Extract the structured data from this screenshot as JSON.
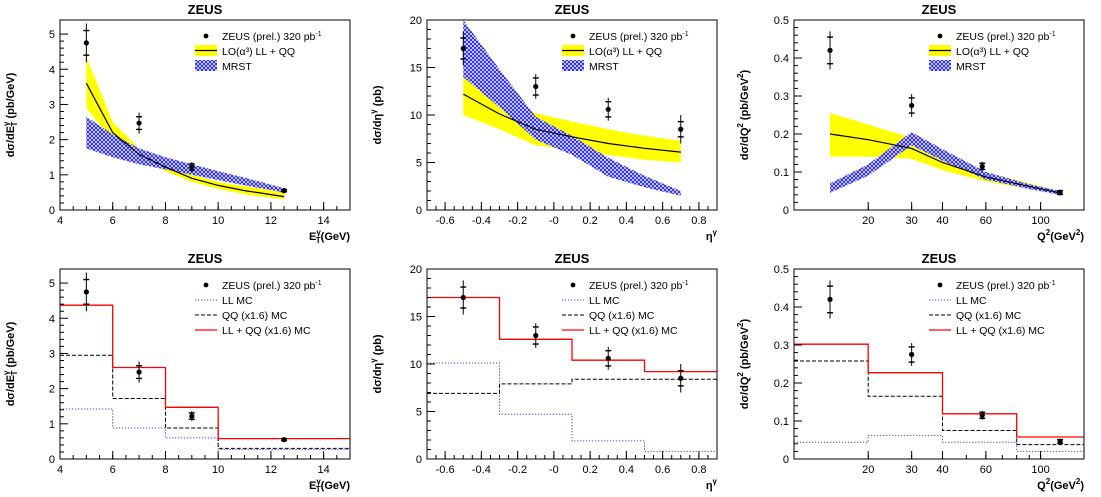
{
  "colors": {
    "band_yellow": "#ffff00",
    "band_blue": "#2a2aee",
    "line_black": "#000000",
    "ll_mc": "#3b3bdd",
    "qq_mc": "#000000",
    "sum_mc": "#ff0000"
  },
  "chart_data": [
    {
      "type": "line",
      "panel": "top-left",
      "title": "ZEUS",
      "ylabel_base": "dσ/dE",
      "ylabel_sub": "T",
      "ylabel_sup": "γ",
      "ylabel_tail": " (pb/GeV)",
      "xlabel_base": "E",
      "xlabel_sub": "T",
      "xlabel_sup": "γ",
      "xlabel_tail": "(GeV)",
      "xlim": [
        4,
        15
      ],
      "ylim": [
        0,
        5.4
      ],
      "xticks": [
        4,
        6,
        8,
        10,
        12,
        14
      ],
      "yticks": [
        0,
        1,
        2,
        3,
        4,
        5
      ],
      "legend_position": "top-right",
      "legend": [
        {
          "label": "ZEUS (prel.) 320 pb",
          "sup": "-1",
          "style": "point"
        },
        {
          "label": "LO(α³) LL + QQ",
          "style": "yellow-band"
        },
        {
          "label": "MRST",
          "style": "blue-band"
        }
      ],
      "data": {
        "x": [
          5,
          7,
          9,
          12.5
        ],
        "y": [
          4.75,
          2.47,
          1.22,
          0.55
        ],
        "err_stat": [
          0.35,
          0.18,
          0.09,
          0.03
        ],
        "err_tot": [
          0.55,
          0.3,
          0.14,
          0.05
        ]
      },
      "yellow_band": {
        "x": [
          5,
          6,
          7,
          8,
          9,
          10,
          11,
          12.5
        ],
        "lo": [
          2.9,
          1.95,
          1.45,
          1.1,
          0.8,
          0.6,
          0.45,
          0.3
        ],
        "hi": [
          4.35,
          2.5,
          1.75,
          1.35,
          1.0,
          0.8,
          0.68,
          0.5
        ],
        "central": [
          3.6,
          2.2,
          1.58,
          1.22,
          0.9,
          0.7,
          0.55,
          0.38
        ]
      },
      "blue_band": {
        "x": [
          5,
          6,
          7,
          8,
          9,
          10,
          11,
          12.5
        ],
        "lo": [
          1.75,
          1.5,
          1.3,
          1.15,
          1.0,
          0.85,
          0.7,
          0.5
        ],
        "hi": [
          2.65,
          2.15,
          1.75,
          1.5,
          1.3,
          1.1,
          0.92,
          0.62
        ]
      }
    },
    {
      "type": "line",
      "panel": "top-middle",
      "title": "ZEUS",
      "ylabel_base": "dσ/dη",
      "ylabel_sub": "",
      "ylabel_sup": "γ",
      "ylabel_tail": " (pb)",
      "xlabel_base": "η",
      "xlabel_sub": "",
      "xlabel_sup": "γ",
      "xlabel_tail": "",
      "xlim": [
        -0.7,
        0.9
      ],
      "ylim": [
        0,
        20
      ],
      "xticks": [
        -0.6,
        -0.4,
        -0.2,
        0,
        0.2,
        0.4,
        0.6,
        0.8
      ],
      "xtick_labels": [
        "-0.6",
        "-0.4",
        "-0.2",
        "-0",
        "0.2",
        "0.4",
        "0.6",
        "0.8"
      ],
      "yticks": [
        0,
        5,
        10,
        15,
        20
      ],
      "legend_position": "top-right",
      "legend": [
        {
          "label": "ZEUS (prel.) 320 pb",
          "sup": "-1",
          "style": "point"
        },
        {
          "label": "LO(α³) LL + QQ",
          "style": "yellow-band"
        },
        {
          "label": "MRST",
          "style": "blue-band"
        }
      ],
      "data": {
        "x": [
          -0.5,
          -0.1,
          0.3,
          0.7
        ],
        "y": [
          17.0,
          13.0,
          10.6,
          8.5
        ],
        "err_stat": [
          1.1,
          0.9,
          0.8,
          0.8
        ],
        "err_tot": [
          1.8,
          1.3,
          1.2,
          1.5
        ]
      },
      "yellow_band": {
        "x": [
          -0.5,
          -0.3,
          -0.1,
          0.1,
          0.3,
          0.5,
          0.7
        ],
        "lo": [
          10.0,
          8.5,
          6.8,
          6.3,
          5.8,
          5.3,
          5.0
        ],
        "hi": [
          14.0,
          11.5,
          10.2,
          9.3,
          8.5,
          7.8,
          7.3
        ],
        "central": [
          12.2,
          10.1,
          8.5,
          7.7,
          7.0,
          6.5,
          6.1
        ]
      },
      "blue_band": {
        "x": [
          -0.5,
          -0.3,
          -0.1,
          0.1,
          0.3,
          0.5,
          0.7
        ],
        "lo": [
          14.0,
          10.8,
          7.4,
          5.8,
          3.5,
          2.4,
          1.5
        ],
        "hi": [
          20.0,
          14.8,
          9.8,
          7.8,
          5.5,
          3.6,
          2.0
        ]
      }
    },
    {
      "type": "line",
      "panel": "top-right",
      "title": "ZEUS",
      "ylabel_base": "dσ/dQ",
      "ylabel_sub": "",
      "ylabel_sup": "2",
      "ylabel_tail": " (pb/GeV",
      "ylabel_tail_sup": "2",
      "ylabel_close": ")",
      "xlabel_base": "Q",
      "xlabel_sub": "",
      "xlabel_sup": "2",
      "xlabel_tail": "(GeV",
      "xlabel_tail_sup": "2",
      "xlabel_close": ")",
      "xscale": "log",
      "xlim": [
        10,
        150
      ],
      "ylim": [
        0,
        0.5
      ],
      "xticks": [
        20,
        30,
        40,
        60,
        100
      ],
      "yticks": [
        0,
        0.1,
        0.2,
        0.3,
        0.4,
        0.5
      ],
      "legend_position": "top-right",
      "legend": [
        {
          "label": "ZEUS (prel.) 320 pb",
          "sup": "-1",
          "style": "point"
        },
        {
          "label": "LO(α³) LL + QQ",
          "style": "yellow-band"
        },
        {
          "label": "MRST",
          "style": "blue-band"
        }
      ],
      "data": {
        "x": [
          14,
          30,
          58,
          120
        ],
        "y": [
          0.42,
          0.275,
          0.115,
          0.046
        ],
        "err_stat": [
          0.035,
          0.02,
          0.008,
          0.005
        ],
        "err_tot": [
          0.05,
          0.03,
          0.012,
          0.008
        ]
      },
      "yellow_band": {
        "x": [
          14,
          20,
          30,
          40,
          60,
          90,
          120
        ],
        "lo": [
          0.14,
          0.14,
          0.135,
          0.105,
          0.075,
          0.055,
          0.04
        ],
        "hi": [
          0.255,
          0.225,
          0.19,
          0.14,
          0.1,
          0.07,
          0.05
        ],
        "central": [
          0.2,
          0.185,
          0.162,
          0.125,
          0.087,
          0.062,
          0.045
        ]
      },
      "blue_band": {
        "x": [
          14,
          20,
          30,
          40,
          60,
          90,
          120
        ],
        "lo": [
          0.045,
          0.09,
          0.17,
          0.13,
          0.08,
          0.055,
          0.04
        ],
        "hi": [
          0.07,
          0.12,
          0.205,
          0.16,
          0.1,
          0.068,
          0.05
        ]
      }
    },
    {
      "type": "line",
      "panel": "bottom-left",
      "title": "ZEUS",
      "ylabel_base": "dσ/dE",
      "ylabel_sub": "T",
      "ylabel_sup": "γ",
      "ylabel_tail": " (pb/GeV)",
      "xlabel_base": "E",
      "xlabel_sub": "T",
      "xlabel_sup": "γ",
      "xlabel_tail": "(GeV)",
      "xlim": [
        4,
        15
      ],
      "ylim": [
        0,
        5.4
      ],
      "xticks": [
        4,
        6,
        8,
        10,
        12,
        14
      ],
      "yticks": [
        0,
        1,
        2,
        3,
        4,
        5
      ],
      "legend_position": "top-right",
      "legend": [
        {
          "label": "ZEUS (prel.) 320 pb",
          "sup": "-1",
          "style": "point"
        },
        {
          "label": "LL MC",
          "style": "dotted-blue"
        },
        {
          "label": "QQ (x1.6) MC",
          "style": "dashed-black"
        },
        {
          "label": "LL + QQ (x1.6) MC",
          "style": "solid-red"
        }
      ],
      "data": {
        "x": [
          5,
          7,
          9,
          12.5
        ],
        "y": [
          4.75,
          2.47,
          1.22,
          0.55
        ],
        "err_stat": [
          0.35,
          0.18,
          0.09,
          0.03
        ],
        "err_tot": [
          0.55,
          0.3,
          0.14,
          0.05
        ]
      },
      "histograms": {
        "edges": [
          4,
          6,
          8,
          10,
          15
        ],
        "ll": [
          1.42,
          0.88,
          0.6,
          0.27
        ],
        "qq": [
          2.95,
          1.72,
          0.88,
          0.3
        ],
        "sum": [
          4.37,
          2.6,
          1.47,
          0.58
        ]
      }
    },
    {
      "type": "line",
      "panel": "bottom-middle",
      "title": "ZEUS",
      "ylabel_base": "dσ/dη",
      "ylabel_sub": "",
      "ylabel_sup": "γ",
      "ylabel_tail": " (pb)",
      "xlabel_base": "η",
      "xlabel_sub": "",
      "xlabel_sup": "γ",
      "xlabel_tail": "",
      "xlim": [
        -0.7,
        0.9
      ],
      "ylim": [
        0,
        20
      ],
      "xticks": [
        -0.6,
        -0.4,
        -0.2,
        0,
        0.2,
        0.4,
        0.6,
        0.8
      ],
      "xtick_labels": [
        "-0.6",
        "-0.4",
        "-0.2",
        "-0",
        "0.2",
        "0.4",
        "0.6",
        "0.8"
      ],
      "yticks": [
        0,
        5,
        10,
        15,
        20
      ],
      "legend_position": "top-right",
      "legend": [
        {
          "label": "ZEUS (prel.) 320 pb",
          "sup": "-1",
          "style": "point"
        },
        {
          "label": "LL MC",
          "style": "dotted-blue"
        },
        {
          "label": "QQ (x1.6) MC",
          "style": "dashed-black"
        },
        {
          "label": "LL + QQ (x1.6) MC",
          "style": "solid-red"
        }
      ],
      "data": {
        "x": [
          -0.5,
          -0.1,
          0.3,
          0.7
        ],
        "y": [
          17.0,
          13.0,
          10.6,
          8.5
        ],
        "err_stat": [
          1.1,
          0.9,
          0.8,
          0.8
        ],
        "err_tot": [
          1.8,
          1.3,
          1.2,
          1.5
        ]
      },
      "histograms": {
        "edges": [
          -0.7,
          -0.3,
          0.1,
          0.5,
          0.9
        ],
        "ll": [
          10.1,
          4.7,
          1.9,
          0.8
        ],
        "qq": [
          6.9,
          7.9,
          8.4,
          8.4
        ],
        "sum": [
          17.0,
          12.6,
          10.4,
          9.2
        ]
      }
    },
    {
      "type": "line",
      "panel": "bottom-right",
      "title": "ZEUS",
      "ylabel_base": "dσ/dQ",
      "ylabel_sub": "",
      "ylabel_sup": "2",
      "ylabel_tail": " (pb/GeV",
      "ylabel_tail_sup": "2",
      "ylabel_close": ")",
      "xlabel_base": "Q",
      "xlabel_sub": "",
      "xlabel_sup": "2",
      "xlabel_tail": "(GeV",
      "xlabel_tail_sup": "2",
      "xlabel_close": ")",
      "xscale": "log",
      "xlim": [
        10,
        150
      ],
      "ylim": [
        0,
        0.5
      ],
      "xticks": [
        20,
        30,
        40,
        60,
        100
      ],
      "yticks": [
        0,
        0.1,
        0.2,
        0.3,
        0.4,
        0.5
      ],
      "legend_position": "top-right",
      "legend": [
        {
          "label": "ZEUS (prel.) 320 pb",
          "sup": "-1",
          "style": "point"
        },
        {
          "label": "LL MC",
          "style": "dotted-blue"
        },
        {
          "label": "QQ (x1.6) MC",
          "style": "dashed-black"
        },
        {
          "label": "LL + QQ (x1.6) MC",
          "style": "solid-red"
        }
      ],
      "data": {
        "x": [
          14,
          30,
          58,
          120
        ],
        "y": [
          0.42,
          0.275,
          0.115,
          0.046
        ],
        "err_stat": [
          0.035,
          0.02,
          0.008,
          0.005
        ],
        "err_tot": [
          0.05,
          0.03,
          0.012,
          0.008
        ]
      },
      "histograms": {
        "edges": [
          10,
          20,
          40,
          80,
          150
        ],
        "ll": [
          0.044,
          0.062,
          0.044,
          0.02
        ],
        "qq": [
          0.258,
          0.165,
          0.075,
          0.038
        ],
        "sum": [
          0.302,
          0.227,
          0.119,
          0.058
        ]
      }
    }
  ]
}
